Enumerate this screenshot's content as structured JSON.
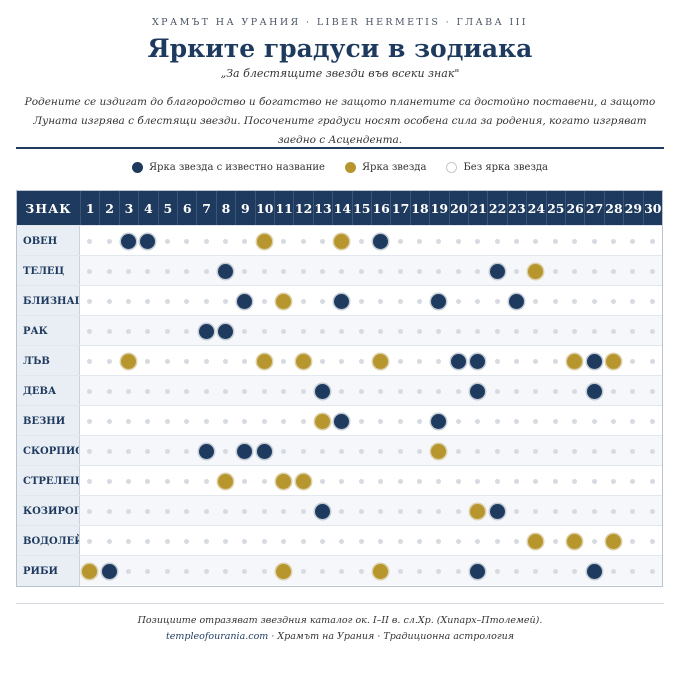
{
  "header": {
    "kicker": "ХРАМЪТ НА УРАНИЯ · LIBER HERMETIS · ГЛАВА III",
    "title": "Ярките градуси в зодиака",
    "subtitle": "„За блестящите звезди във всеки знак\"",
    "intro": "Родените се издигат до благородство и богатство не защото планетите са достойно поставени, а защото Луната изгрява с блестящи звезди. Посочените градуси носят особена сила за родения, когато изгряват заедно с Асцендента."
  },
  "legend": {
    "named": "Ярка звезда с известно название",
    "bright": "Ярка звезда",
    "none": "Без ярка звезда"
  },
  "colors": {
    "named": "#1f3a5f",
    "bright": "#b8962e",
    "none": "#d6dbe1"
  },
  "table": {
    "sign_header": "ЗНАК",
    "degrees": [
      "1",
      "2",
      "3",
      "4",
      "5",
      "6",
      "7",
      "8",
      "9",
      "10",
      "11",
      "12",
      "13",
      "14",
      "15",
      "16",
      "17",
      "18",
      "19",
      "20",
      "21",
      "22",
      "23",
      "24",
      "25",
      "26",
      "27",
      "28",
      "29",
      "30"
    ],
    "rows": [
      {
        "sign": "ОВЕН",
        "named": [
          3,
          4,
          16
        ],
        "bright": [
          10,
          14
        ]
      },
      {
        "sign": "ТЕЛЕЦ",
        "named": [
          8,
          22
        ],
        "bright": [
          24
        ]
      },
      {
        "sign": "БЛИЗНАЦИ",
        "named": [
          9,
          14,
          19,
          23
        ],
        "bright": [
          11
        ]
      },
      {
        "sign": "РАК",
        "named": [
          7,
          8
        ],
        "bright": []
      },
      {
        "sign": "ЛЪВ",
        "named": [
          20,
          21,
          27
        ],
        "bright": [
          3,
          10,
          12,
          16,
          26,
          28
        ]
      },
      {
        "sign": "ДЕВА",
        "named": [
          13,
          21,
          27
        ],
        "bright": []
      },
      {
        "sign": "ВЕЗНИ",
        "named": [
          14,
          19
        ],
        "bright": [
          13
        ]
      },
      {
        "sign": "СКОРПИОН",
        "named": [
          7,
          9,
          10
        ],
        "bright": [
          19
        ]
      },
      {
        "sign": "СТРЕЛЕЦ",
        "named": [],
        "bright": [
          8,
          11,
          12
        ]
      },
      {
        "sign": "КОЗИРОГ",
        "named": [
          13,
          22
        ],
        "bright": [
          21
        ]
      },
      {
        "sign": "ВОДОЛЕЙ",
        "named": [],
        "bright": [
          24,
          26,
          28
        ]
      },
      {
        "sign": "РИБИ",
        "named": [
          2,
          21,
          27
        ],
        "bright": [
          1,
          11,
          16
        ]
      }
    ]
  },
  "footer": {
    "note": "Позициите отразяват звездния каталог ок. I–II в. сл.Хр. (Хипарх–Птолемей).",
    "site": "templeofourania.com",
    "rest": " · Храмът на Урания · Традиционна астрология"
  }
}
